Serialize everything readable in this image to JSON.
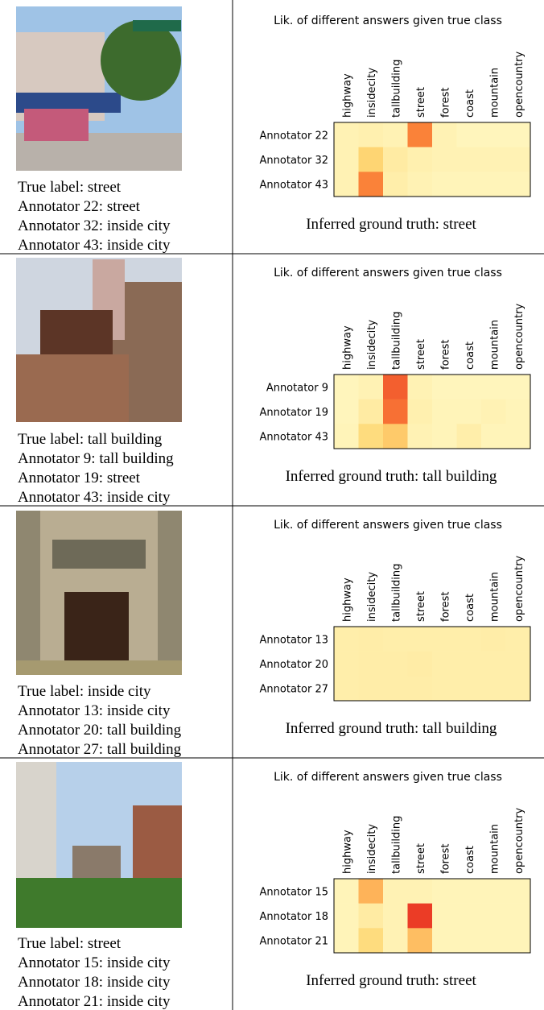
{
  "panels": [
    {
      "captions": [
        "True label: street",
        "Annotator 22: street",
        "Annotator 32: inside city",
        "Annotator 43: inside city"
      ],
      "chart_data": {
        "type": "heatmap",
        "title": "Lik. of different answers given true class",
        "categories": [
          "highway",
          "insidecity",
          "tallbuilding",
          "street",
          "forest",
          "coast",
          "mountain",
          "opencountry"
        ],
        "rows": [
          "Annotator 22",
          "Annotator 32",
          "Annotator 43"
        ],
        "values": [
          [
            0.08,
            0.1,
            0.08,
            0.7,
            0.08,
            0.05,
            0.05,
            0.05
          ],
          [
            0.08,
            0.35,
            0.15,
            0.1,
            0.08,
            0.08,
            0.08,
            0.08
          ],
          [
            0.08,
            0.7,
            0.12,
            0.08,
            0.06,
            0.06,
            0.06,
            0.06
          ]
        ],
        "vlim": [
          0,
          1
        ],
        "cmap": [
          "#fffac8",
          "#fed976",
          "#fd8d3c",
          "#e31a1c"
        ],
        "caption": "Inferred ground truth: street"
      }
    },
    {
      "captions": [
        "True label: tall building",
        "Annotator 9: tall building",
        "Annotator 19: street",
        "Annotator 43: inside city"
      ],
      "chart_data": {
        "type": "heatmap",
        "title": "Lik. of different answers given true class",
        "categories": [
          "highway",
          "insidecity",
          "tallbuilding",
          "street",
          "forest",
          "coast",
          "mountain",
          "opencountry"
        ],
        "rows": [
          "Annotator 9",
          "Annotator 19",
          "Annotator 43"
        ],
        "values": [
          [
            0.05,
            0.08,
            0.8,
            0.08,
            0.05,
            0.05,
            0.05,
            0.05
          ],
          [
            0.05,
            0.15,
            0.75,
            0.1,
            0.06,
            0.06,
            0.08,
            0.06
          ],
          [
            0.06,
            0.3,
            0.4,
            0.08,
            0.06,
            0.12,
            0.06,
            0.06
          ]
        ],
        "vlim": [
          0,
          1
        ],
        "cmap": [
          "#fffac8",
          "#fed976",
          "#fd8d3c",
          "#e31a1c"
        ],
        "caption": "Inferred ground truth: tall building"
      }
    },
    {
      "captions": [
        "True label: inside city",
        "Annotator 13: inside city",
        "Annotator 20: tall building",
        "Annotator 27: tall building"
      ],
      "chart_data": {
        "type": "heatmap",
        "title": "Lik. of different answers given true class",
        "categories": [
          "highway",
          "insidecity",
          "tallbuilding",
          "street",
          "forest",
          "coast",
          "mountain",
          "opencountry"
        ],
        "rows": [
          "Annotator 13",
          "Annotator 20",
          "Annotator 27"
        ],
        "values": [
          [
            0.12,
            0.13,
            0.12,
            0.12,
            0.12,
            0.12,
            0.13,
            0.12
          ],
          [
            0.12,
            0.13,
            0.13,
            0.14,
            0.12,
            0.12,
            0.12,
            0.12
          ],
          [
            0.12,
            0.13,
            0.13,
            0.13,
            0.12,
            0.12,
            0.12,
            0.12
          ]
        ],
        "vlim": [
          0,
          1
        ],
        "cmap": [
          "#fffac8",
          "#fed976",
          "#fd8d3c",
          "#e31a1c"
        ],
        "caption": "Inferred ground truth: tall building"
      }
    },
    {
      "captions": [
        "True label: street",
        "Annotator 15: inside city",
        "Annotator 18: inside city",
        "Annotator 21: inside city"
      ],
      "chart_data": {
        "type": "heatmap",
        "title": "Lik. of different answers given true class",
        "categories": [
          "highway",
          "insidecity",
          "tallbuilding",
          "street",
          "forest",
          "coast",
          "mountain",
          "opencountry"
        ],
        "rows": [
          "Annotator 15",
          "Annotator 18",
          "Annotator 21"
        ],
        "values": [
          [
            0.06,
            0.5,
            0.08,
            0.08,
            0.06,
            0.06,
            0.06,
            0.06
          ],
          [
            0.06,
            0.15,
            0.08,
            0.9,
            0.06,
            0.06,
            0.06,
            0.06
          ],
          [
            0.06,
            0.3,
            0.08,
            0.45,
            0.06,
            0.06,
            0.06,
            0.06
          ]
        ],
        "vlim": [
          0,
          1
        ],
        "cmap": [
          "#fffac8",
          "#fed976",
          "#fd8d3c",
          "#e31a1c"
        ],
        "caption": "Inferred ground truth: street"
      }
    }
  ]
}
